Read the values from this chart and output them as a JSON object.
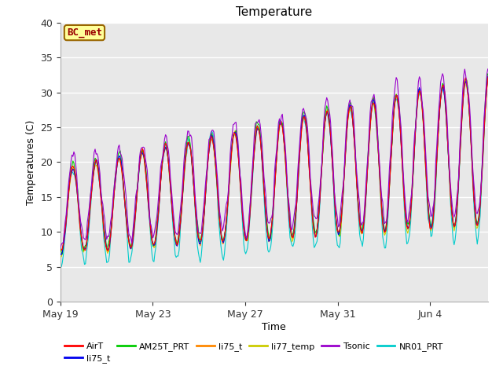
{
  "title": "Temperature",
  "xlabel": "Time",
  "ylabel": "Temperatures (C)",
  "ylim": [
    0,
    40
  ],
  "yticks": [
    0,
    5,
    10,
    15,
    20,
    25,
    30,
    35,
    40
  ],
  "xtick_labels": [
    "May 19",
    "May 23",
    "May 27",
    "May 31",
    "Jun 4"
  ],
  "xtick_positions": [
    0,
    4,
    8,
    12,
    16
  ],
  "annotation_text": "BC_met",
  "annotation_bg": "#FFFF99",
  "annotation_border": "#996600",
  "annotation_text_color": "#990000",
  "fig_bg": "#FFFFFF",
  "plot_bg": "#E8E8E8",
  "legend_entries": [
    {
      "label": "AirT",
      "color": "#FF0000"
    },
    {
      "label": "li75_t",
      "color": "#0000EE"
    },
    {
      "label": "AM25T_PRT",
      "color": "#00CC00"
    },
    {
      "label": "li75_t",
      "color": "#FF8800"
    },
    {
      "label": "li77_temp",
      "color": "#CCCC00"
    },
    {
      "label": "Tsonic",
      "color": "#9900CC"
    },
    {
      "label": "NR01_PRT",
      "color": "#00CCCC"
    }
  ]
}
